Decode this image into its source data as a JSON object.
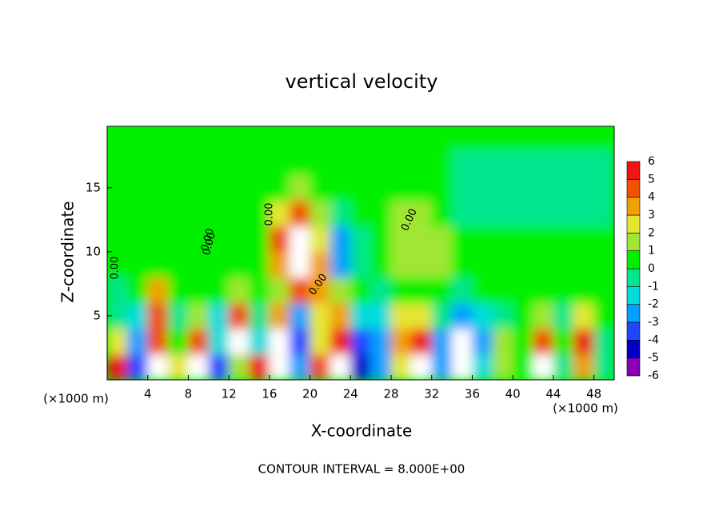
{
  "chart_data": {
    "type": "heatmap",
    "title": "vertical velocity",
    "x_label": "X-coordinate",
    "y_label": "Z-coordinate",
    "x_unit": "(×1000 m)",
    "y_unit": "(×1000 m)",
    "footer": "CONTOUR INTERVAL = 8.000E+00",
    "contour_labels": [
      "0.00",
      "0.00",
      "0.00",
      "0.00",
      "0.00",
      "0.00"
    ],
    "xlim": [
      0,
      50
    ],
    "ylim": [
      0,
      19.8
    ],
    "xticks": [
      4,
      8,
      12,
      16,
      20,
      24,
      28,
      32,
      36,
      40,
      44,
      48
    ],
    "yticks": [
      5,
      10,
      15
    ],
    "x": [
      1,
      3,
      5,
      7,
      9,
      11,
      13,
      15,
      17,
      19,
      21,
      23,
      25,
      27,
      29,
      31,
      33,
      35,
      37,
      39,
      41,
      43,
      45,
      47,
      49
    ],
    "z": [
      1,
      3,
      5,
      7,
      9,
      11,
      13,
      15,
      17,
      19
    ],
    "values": [
      [
        5,
        -4,
        6.5,
        2,
        6.5,
        -4,
        1,
        5,
        7,
        -3,
        4,
        6.5,
        -5,
        -3,
        2,
        6.5,
        -3,
        7,
        -2,
        1,
        0.5,
        6,
        -1,
        3,
        -1
      ],
      [
        2,
        -3,
        4,
        0.5,
        4,
        -2,
        7,
        -2,
        6,
        -4,
        2,
        5,
        -4,
        -3,
        3,
        5,
        -3,
        6,
        -3,
        1,
        0.5,
        4,
        0,
        5,
        -1
      ],
      [
        -1,
        -2,
        4,
        -1,
        1,
        -2,
        4,
        -1,
        3,
        -3,
        2,
        3,
        -2,
        -2,
        2,
        2,
        -1,
        -3,
        -2,
        -1,
        0,
        1,
        -1,
        2,
        0
      ],
      [
        -1,
        0,
        3,
        0,
        0,
        0,
        1,
        0,
        1,
        4,
        3,
        1,
        0,
        -1,
        0.5,
        0.5,
        0,
        -1,
        0,
        0,
        0,
        0,
        0,
        0,
        0
      ],
      [
        0.5,
        0.5,
        0.5,
        0.5,
        0.5,
        0,
        0,
        0.5,
        3,
        6.5,
        3,
        -3,
        -1,
        0,
        1,
        1.5,
        1,
        0.5,
        0.3,
        0.3,
        0.3,
        0.3,
        0.3,
        0.3,
        0.3
      ],
      [
        0.5,
        0.5,
        0.5,
        0.5,
        0.5,
        0.5,
        0.5,
        0.5,
        4,
        7,
        2,
        -3,
        -0.5,
        0.5,
        1,
        1.5,
        1,
        0.5,
        0.5,
        0.5,
        0.5,
        0.5,
        0.5,
        0.5,
        0.5
      ],
      [
        0.3,
        0.3,
        0.3,
        0.3,
        0.3,
        0.3,
        0.3,
        0.3,
        2,
        4,
        1,
        -1,
        0.3,
        0.3,
        1,
        1,
        0.3,
        -0.5,
        -0.5,
        -0.5,
        -0.5,
        -0.5,
        -0.5,
        -0.5,
        -0.5
      ],
      [
        0.3,
        0.3,
        0.3,
        0.3,
        0.3,
        0.3,
        0.5,
        0.3,
        0.3,
        1,
        0.3,
        0.3,
        0.3,
        0.3,
        0.3,
        0.3,
        0.3,
        -0.5,
        -0.5,
        -0.5,
        -0.5,
        -0.5,
        -0.5,
        -0.5,
        -0.5
      ],
      [
        0.5,
        0.5,
        0.5,
        0.5,
        0.5,
        0.5,
        0.5,
        0.5,
        0.5,
        0.5,
        0.5,
        0.5,
        0.5,
        0.5,
        0.5,
        0.5,
        0.3,
        -0.5,
        -0.5,
        -0.5,
        -0.5,
        -0.5,
        -0.5,
        -0.5,
        -0.5
      ],
      [
        0.3,
        0.3,
        0.3,
        0.3,
        0.3,
        0.3,
        0.3,
        0.3,
        0.3,
        0.3,
        0.3,
        0.3,
        0.3,
        0.3,
        0.3,
        0.3,
        0.3,
        0.3,
        0.3,
        0.3,
        0.3,
        0.3,
        0.3,
        0.3,
        0.3
      ]
    ],
    "colorbar": {
      "levels": [
        -6,
        -5,
        -4,
        -3,
        -2,
        -1,
        0,
        1,
        2,
        3,
        4,
        5,
        6
      ],
      "colors": [
        "#8a00b4",
        "#0000c8",
        "#1e46ff",
        "#00a0ff",
        "#00dcdc",
        "#00e68c",
        "#00f000",
        "#a0e632",
        "#e6e632",
        "#f0a000",
        "#f05000",
        "#f01414",
        "#f08c8c"
      ],
      "above_color": "#ffffff"
    }
  }
}
